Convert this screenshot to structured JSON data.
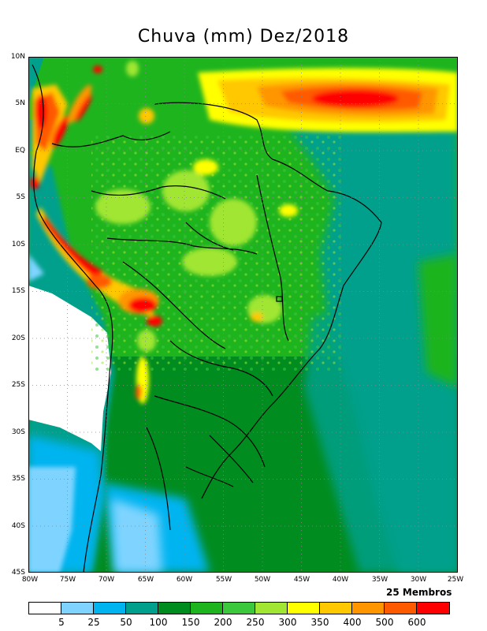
{
  "title": "Chuva (mm) Dez/2018",
  "members_label": "25 Membros",
  "lat_labels": [
    "10N",
    "5N",
    "EQ",
    "5S",
    "10S",
    "15S",
    "20S",
    "25S",
    "30S",
    "35S",
    "40S",
    "45S"
  ],
  "lon_labels": [
    "80W",
    "75W",
    "70W",
    "65W",
    "60W",
    "55W",
    "50W",
    "45W",
    "40W",
    "35W",
    "30W",
    "25W"
  ],
  "colorbar": {
    "ticks": [
      "5",
      "25",
      "50",
      "100",
      "150",
      "200",
      "250",
      "300",
      "350",
      "400",
      "500",
      "600"
    ],
    "colors": [
      "#ffffff",
      "#7fd4ff",
      "#00b4f0",
      "#00a08c",
      "#008c1e",
      "#1eb41e",
      "#3cc83c",
      "#a0e632",
      "#ffff00",
      "#ffc800",
      "#ff9600",
      "#ff5a00",
      "#ff0000"
    ]
  }
}
